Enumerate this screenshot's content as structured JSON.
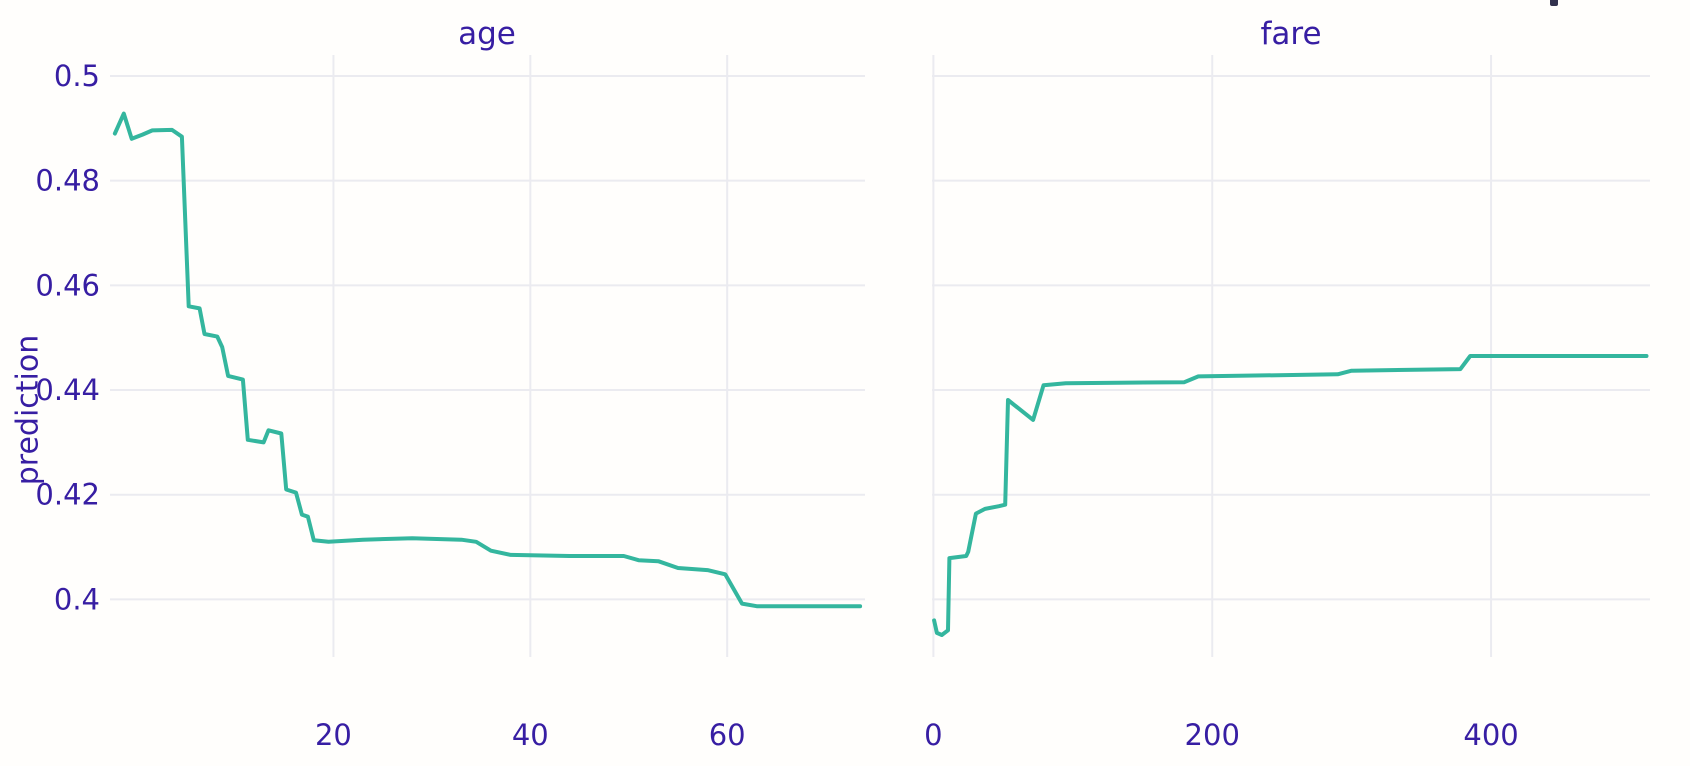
{
  "figure": {
    "kind": "partial-dependence-plot",
    "colors": {
      "text": "#371ea3",
      "line": "#34b69e",
      "grid": "#ebebf0",
      "background": "#fffefc",
      "corner_fragment": "#32324e"
    }
  },
  "yaxis": {
    "label": "prediction",
    "ticks": [
      0.4,
      0.42,
      0.44,
      0.46,
      0.48,
      0.5
    ],
    "tick_labels": [
      "0.4",
      "0.42",
      "0.44",
      "0.46",
      "0.48",
      "0.5"
    ],
    "ylim": [
      0.389,
      0.504
    ],
    "grid": true
  },
  "chart_data": [
    {
      "type": "line",
      "title": "age",
      "xticks": [
        20,
        40,
        60
      ],
      "xtick_labels": [
        "20",
        "40",
        "60"
      ],
      "xlim": [
        -2.7,
        74
      ],
      "ylabel": "prediction",
      "legend": "none",
      "x": [
        -2.2,
        -1.3,
        -0.5,
        0.6,
        1.6,
        3.6,
        4.6,
        5.3,
        6.4,
        6.9,
        8.2,
        8.7,
        9.3,
        10.8,
        11.3,
        12.9,
        13.4,
        14.7,
        15.2,
        16.2,
        16.8,
        17.4,
        18.0,
        19.5,
        23,
        28,
        33,
        34.5,
        36,
        38,
        44,
        49.5,
        51,
        53,
        55,
        58,
        59.8,
        61.5,
        63,
        73.5
      ],
      "y": [
        0.489,
        0.4928,
        0.488,
        0.4888,
        0.4896,
        0.4897,
        0.4884,
        0.456,
        0.4556,
        0.4507,
        0.4502,
        0.4482,
        0.4427,
        0.442,
        0.4305,
        0.43,
        0.4323,
        0.4317,
        0.421,
        0.4204,
        0.4162,
        0.4158,
        0.4113,
        0.411,
        0.4114,
        0.4117,
        0.4114,
        0.411,
        0.4093,
        0.4085,
        0.4083,
        0.4083,
        0.4075,
        0.4073,
        0.406,
        0.4056,
        0.4048,
        0.3992,
        0.3987,
        0.3987
      ]
    },
    {
      "type": "line",
      "title": "fare",
      "xticks": [
        0,
        200,
        400
      ],
      "xtick_labels": [
        "0",
        "200",
        "400"
      ],
      "xlim": [
        -1,
        514
      ],
      "ylabel": "prediction",
      "legend": "none",
      "x": [
        0.5,
        2.5,
        6,
        10.5,
        11.5,
        23.5,
        25,
        30.5,
        37,
        47,
        51.5,
        53.5,
        71.5,
        79,
        95,
        180,
        190,
        290,
        300,
        378,
        385,
        511.5
      ],
      "y": [
        0.396,
        0.3936,
        0.3932,
        0.3941,
        0.4079,
        0.4083,
        0.4091,
        0.4164,
        0.4173,
        0.4178,
        0.4181,
        0.4381,
        0.4343,
        0.4409,
        0.4413,
        0.4415,
        0.4426,
        0.443,
        0.4437,
        0.444,
        0.4465,
        0.4465
      ]
    }
  ]
}
